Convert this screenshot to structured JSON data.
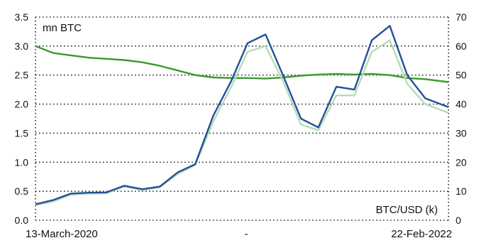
{
  "chart_data": {
    "type": "line",
    "left_axis": {
      "label": "mn BTC",
      "ylim": [
        0.0,
        3.5
      ],
      "ticks": [
        "0.0",
        "0.5",
        "1.0",
        "1.5",
        "2.0",
        "2.5",
        "3.0",
        "3.5"
      ]
    },
    "right_axis": {
      "label": "BTC/USD (k)",
      "ylim": [
        0,
        70
      ],
      "ticks": [
        "0",
        "10",
        "20",
        "30",
        "40",
        "50",
        "60",
        "70"
      ]
    },
    "x_labels": {
      "start": "13-March-2020",
      "middle": "-",
      "end": "22-Feb-2022"
    },
    "grid": true,
    "x_range": [
      "2020-03-13",
      "2022-02-22"
    ],
    "series": [
      {
        "axis": "left",
        "color": "#3a9a2e",
        "points": [
          [
            "2020-03-13",
            3.0
          ],
          [
            "2020-04-13",
            2.88
          ],
          [
            "2020-05-13",
            2.84
          ],
          [
            "2020-06-13",
            2.8
          ],
          [
            "2020-07-13",
            2.78
          ],
          [
            "2020-08-13",
            2.76
          ],
          [
            "2020-09-13",
            2.72
          ],
          [
            "2020-10-13",
            2.66
          ],
          [
            "2020-11-13",
            2.58
          ],
          [
            "2020-12-13",
            2.5
          ],
          [
            "2021-01-13",
            2.46
          ],
          [
            "2021-02-13",
            2.45
          ],
          [
            "2021-03-13",
            2.45
          ],
          [
            "2021-04-13",
            2.44
          ],
          [
            "2021-05-13",
            2.46
          ],
          [
            "2021-06-13",
            2.49
          ],
          [
            "2021-07-13",
            2.51
          ],
          [
            "2021-08-13",
            2.52
          ],
          [
            "2021-09-13",
            2.51
          ],
          [
            "2021-10-13",
            2.52
          ],
          [
            "2021-11-13",
            2.5
          ],
          [
            "2021-12-13",
            2.45
          ],
          [
            "2022-01-13",
            2.43
          ],
          [
            "2022-02-22",
            2.38
          ]
        ]
      },
      {
        "axis": "right",
        "color": "#b7dcb3",
        "points": [
          [
            "2020-03-13",
            5.2
          ],
          [
            "2020-04-13",
            6.5
          ],
          [
            "2020-05-13",
            8.8
          ],
          [
            "2020-06-13",
            9.2
          ],
          [
            "2020-07-13",
            9.3
          ],
          [
            "2020-08-13",
            11.6
          ],
          [
            "2020-09-13",
            10.4
          ],
          [
            "2020-10-13",
            11.3
          ],
          [
            "2020-11-13",
            16.0
          ],
          [
            "2020-12-13",
            19.0
          ],
          [
            "2021-01-13",
            34.0
          ],
          [
            "2021-02-13",
            46.0
          ],
          [
            "2021-03-13",
            58.0
          ],
          [
            "2021-04-13",
            60.0
          ],
          [
            "2021-05-13",
            48.0
          ],
          [
            "2021-06-13",
            33.0
          ],
          [
            "2021-07-13",
            31.0
          ],
          [
            "2021-08-13",
            43.0
          ],
          [
            "2021-09-13",
            43.0
          ],
          [
            "2021-10-13",
            58.0
          ],
          [
            "2021-11-13",
            62.0
          ],
          [
            "2021-12-13",
            47.0
          ],
          [
            "2022-01-13",
            40.0
          ],
          [
            "2022-02-22",
            37.0
          ]
        ]
      },
      {
        "axis": "right",
        "color": "#23509a",
        "points": [
          [
            "2020-03-13",
            5.5
          ],
          [
            "2020-04-13",
            7.0
          ],
          [
            "2020-05-13",
            9.2
          ],
          [
            "2020-06-13",
            9.5
          ],
          [
            "2020-07-13",
            9.6
          ],
          [
            "2020-08-13",
            11.9
          ],
          [
            "2020-09-13",
            10.7
          ],
          [
            "2020-10-13",
            11.6
          ],
          [
            "2020-11-13",
            16.5
          ],
          [
            "2020-12-13",
            19.3
          ],
          [
            "2021-01-13",
            36.0
          ],
          [
            "2021-02-13",
            48.0
          ],
          [
            "2021-03-13",
            61.0
          ],
          [
            "2021-04-13",
            64.0
          ],
          [
            "2021-05-13",
            50.0
          ],
          [
            "2021-06-13",
            35.0
          ],
          [
            "2021-07-13",
            32.0
          ],
          [
            "2021-08-13",
            46.0
          ],
          [
            "2021-09-13",
            45.0
          ],
          [
            "2021-10-13",
            62.0
          ],
          [
            "2021-11-13",
            67.0
          ],
          [
            "2021-12-13",
            50.0
          ],
          [
            "2022-01-13",
            42.0
          ],
          [
            "2022-02-22",
            39.0
          ]
        ]
      }
    ]
  }
}
